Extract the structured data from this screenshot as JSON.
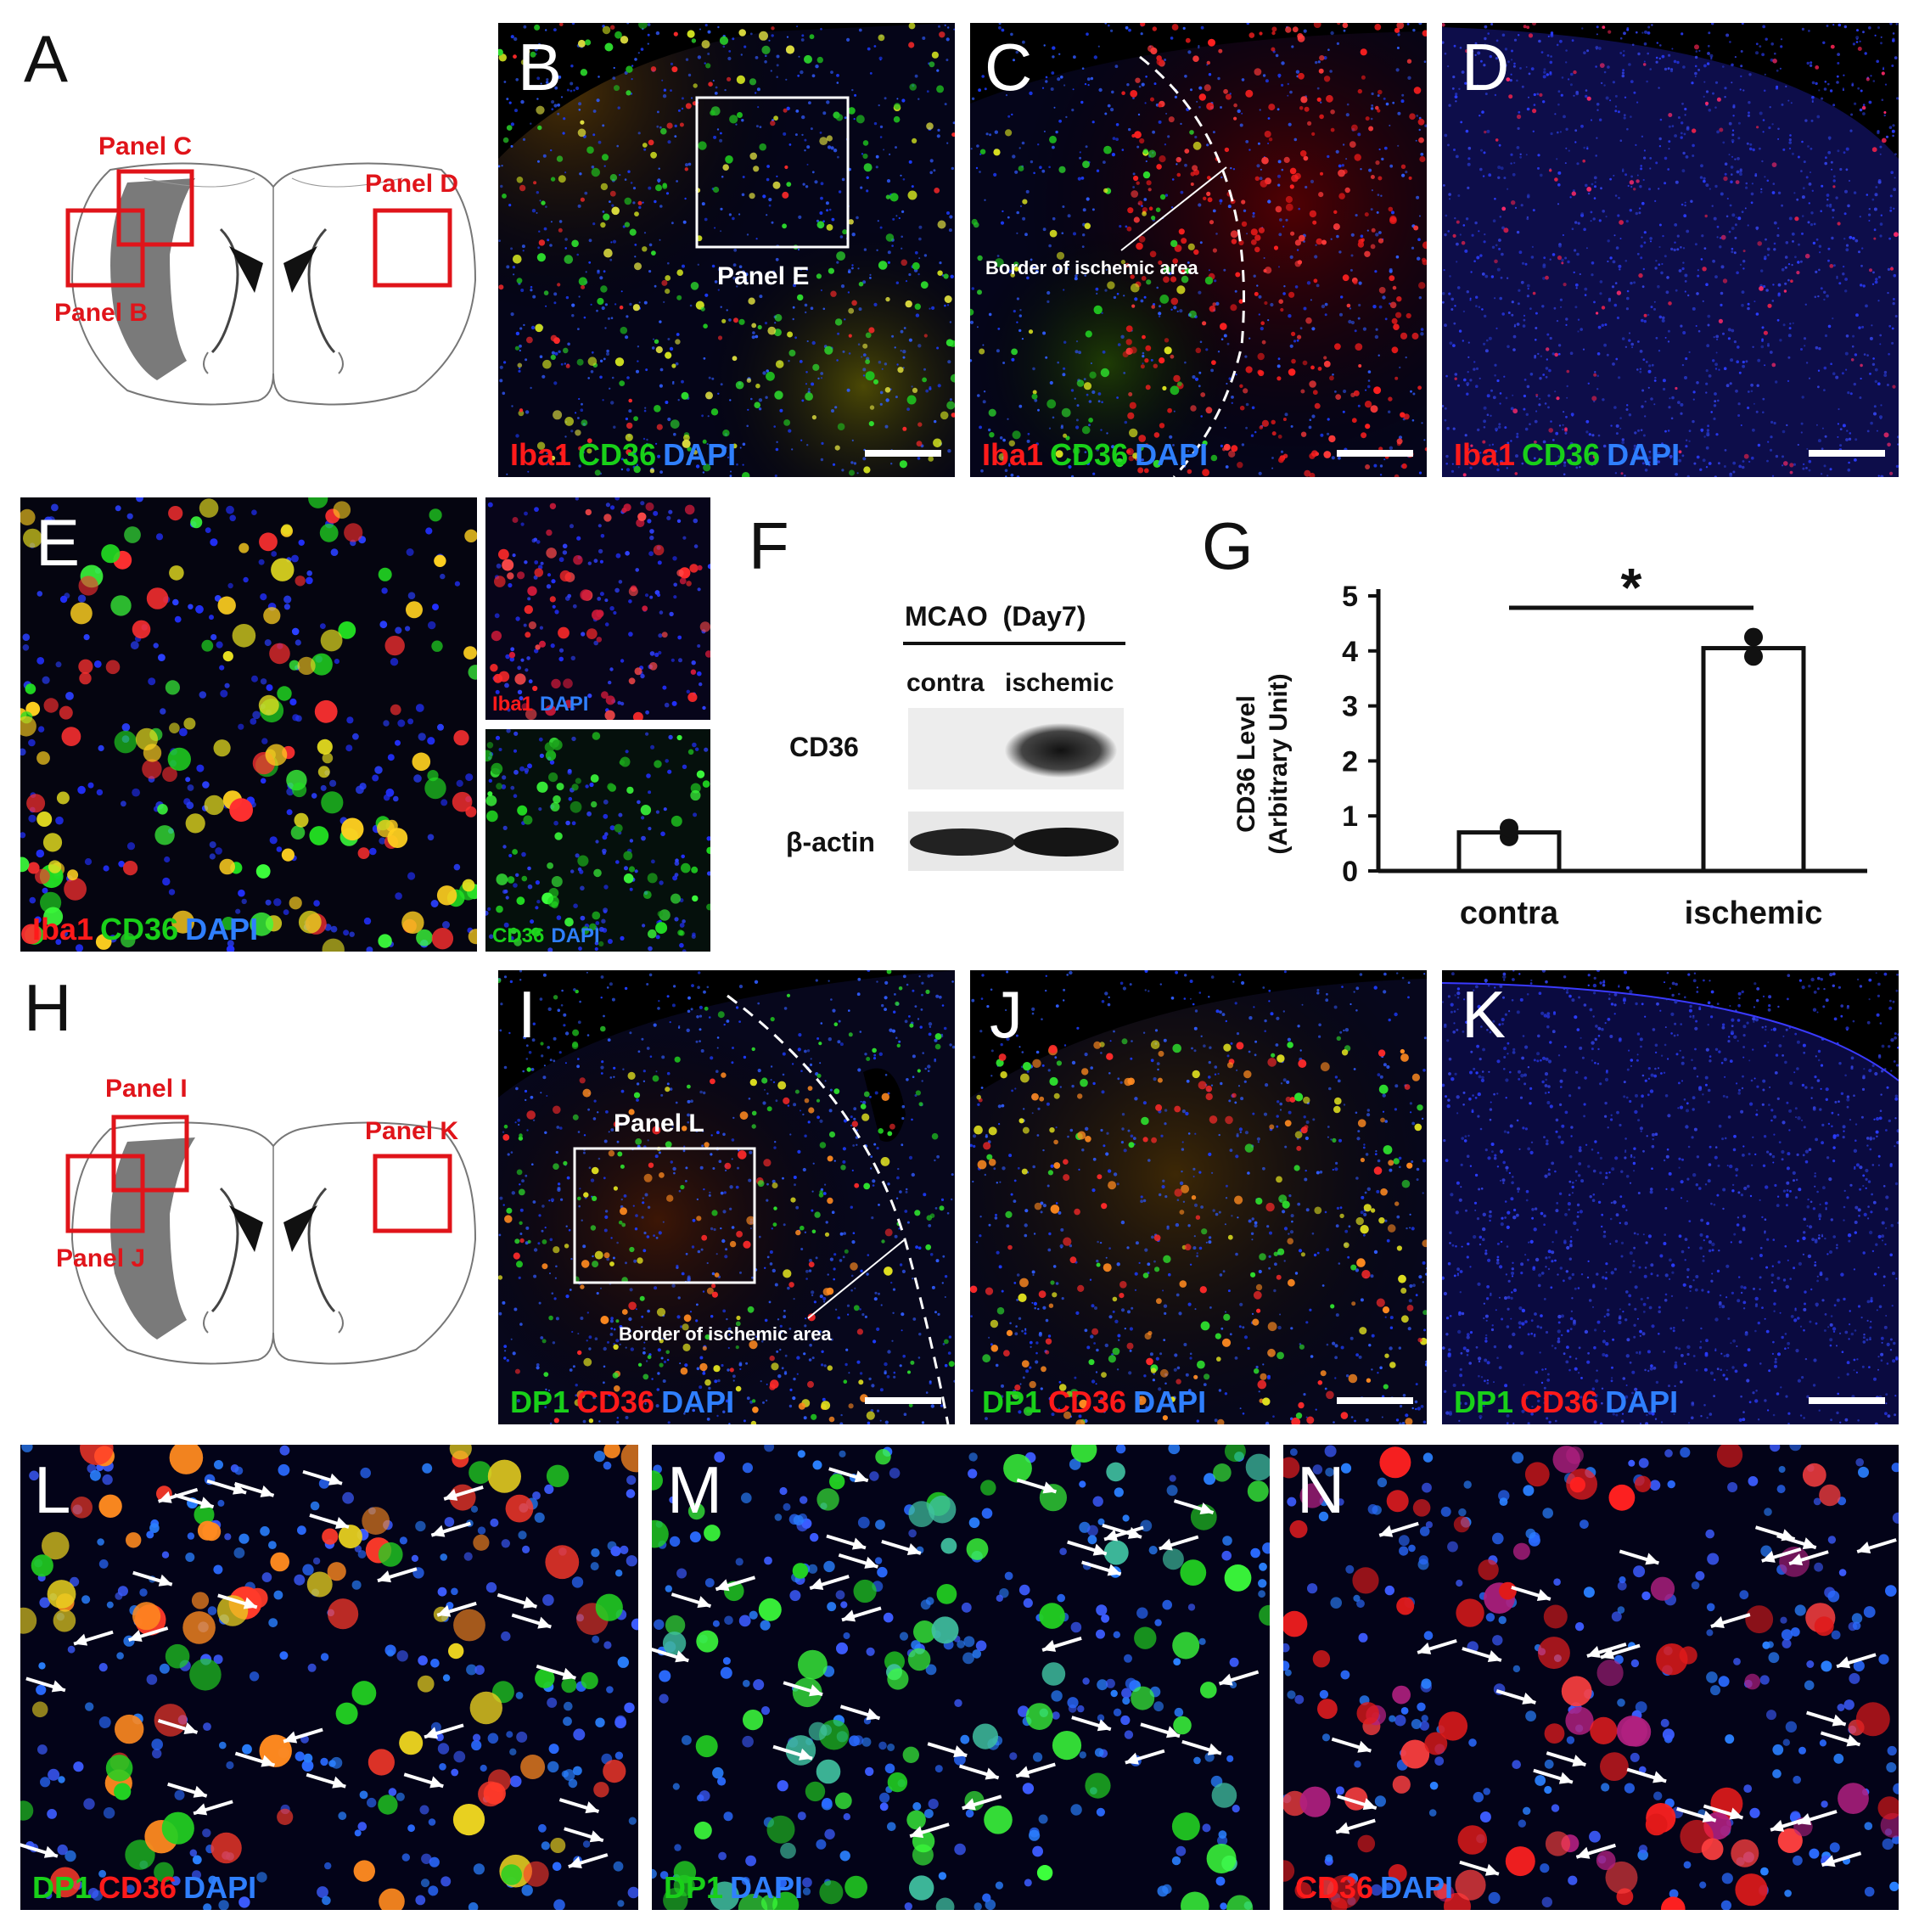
{
  "letters": {
    "A": "A",
    "B": "B",
    "C": "C",
    "D": "D",
    "E": "E",
    "F": "F",
    "G": "G",
    "H": "H",
    "I": "I",
    "J": "J",
    "K": "K",
    "L": "L",
    "M": "M",
    "N": "N"
  },
  "schematic_top": {
    "panel_c": "Panel C",
    "panel_d": "Panel D",
    "panel_b": "Panel B"
  },
  "schematic_bottom": {
    "panel_i": "Panel I",
    "panel_k": "Panel K",
    "panel_j": "Panel J"
  },
  "overlays": {
    "panel_e_box": "Panel E",
    "border_c": "Border of ischemic area",
    "panel_l_box": "Panel L",
    "border_i": "Border of ischemic area"
  },
  "channels": {
    "iba1": "Iba1",
    "cd36": "CD36",
    "dapi": "DAPI",
    "dp1": "DP1"
  },
  "colors": {
    "red": "#ff1a1a",
    "green": "#19d019",
    "blue": "#2f7fff",
    "schematic_red": "#e0141a"
  },
  "western_blot": {
    "group": "MCAO",
    "day": "(Day7)",
    "lane_contra": "contra",
    "lane_ischemic": "ischemic",
    "row_cd36": "CD36",
    "row_actin": "β-actin"
  },
  "chart_data": {
    "type": "bar",
    "categories": [
      "contra",
      "ischemic"
    ],
    "values": [
      0.7,
      4.05
    ],
    "points": [
      [
        0.62,
        0.78
      ],
      [
        3.9,
        4.25
      ]
    ],
    "ylabel_line1": "CD36 Level",
    "ylabel_line2": "(Arbitrary Unit)",
    "ylim": [
      0,
      5
    ],
    "yticks": [
      "0",
      "1",
      "2",
      "3",
      "4",
      "5"
    ],
    "significance": "*"
  }
}
